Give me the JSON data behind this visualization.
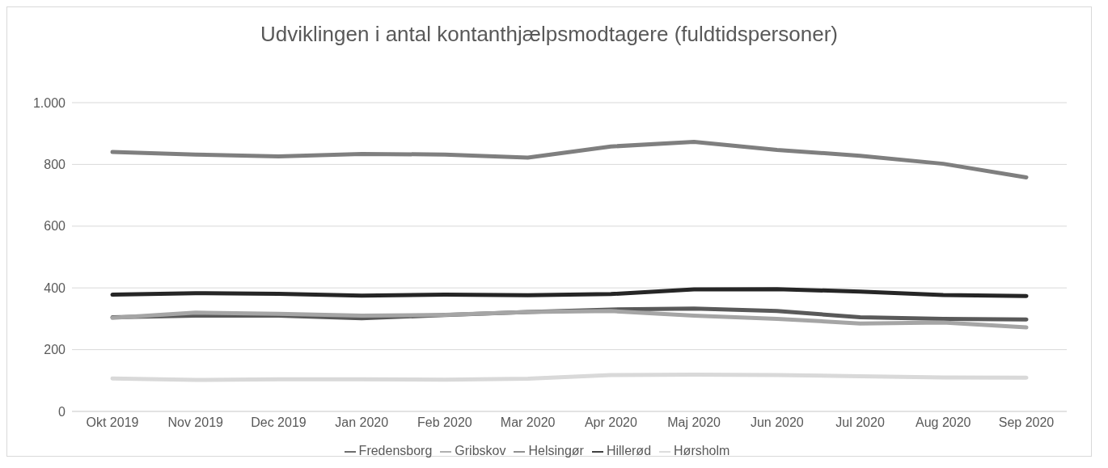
{
  "chart_data": {
    "type": "line",
    "title": "Udviklingen i antal kontanthjælpsmodtagere (fuldtidspersoner)",
    "categories": [
      "Okt 2019",
      "Nov 2019",
      "Dec 2019",
      "Jan 2020",
      "Feb 2020",
      "Mar 2020",
      "Apr 2020",
      "Maj 2020",
      "Jun 2020",
      "Jul 2020",
      "Aug 2020",
      "Sep 2020"
    ],
    "series": [
      {
        "name": "Fredensborg",
        "color": "#595959",
        "values": [
          305,
          310,
          310,
          302,
          312,
          322,
          330,
          333,
          325,
          305,
          300,
          298
        ]
      },
      {
        "name": "Gribskov",
        "color": "#a5a5a5",
        "values": [
          303,
          320,
          316,
          310,
          313,
          322,
          325,
          310,
          300,
          285,
          288,
          272
        ]
      },
      {
        "name": "Helsingør",
        "color": "#7f7f7f",
        "values": [
          840,
          832,
          826,
          834,
          832,
          822,
          858,
          873,
          847,
          828,
          802,
          758
        ]
      },
      {
        "name": "Hillerød",
        "color": "#262626",
        "values": [
          378,
          383,
          381,
          375,
          378,
          376,
          380,
          395,
          396,
          388,
          377,
          374
        ]
      },
      {
        "name": "Hørsholm",
        "color": "#d9d9d9",
        "values": [
          107,
          102,
          104,
          104,
          103,
          106,
          118,
          119,
          118,
          114,
          110,
          109
        ]
      }
    ],
    "ylim": [
      0,
      1000
    ],
    "yticks": [
      0,
      200,
      400,
      600,
      800,
      {
        "value": 1000,
        "label": "1.000"
      }
    ],
    "grid": "y",
    "legend": "bottom",
    "marker": "none",
    "line_style": "solid"
  }
}
